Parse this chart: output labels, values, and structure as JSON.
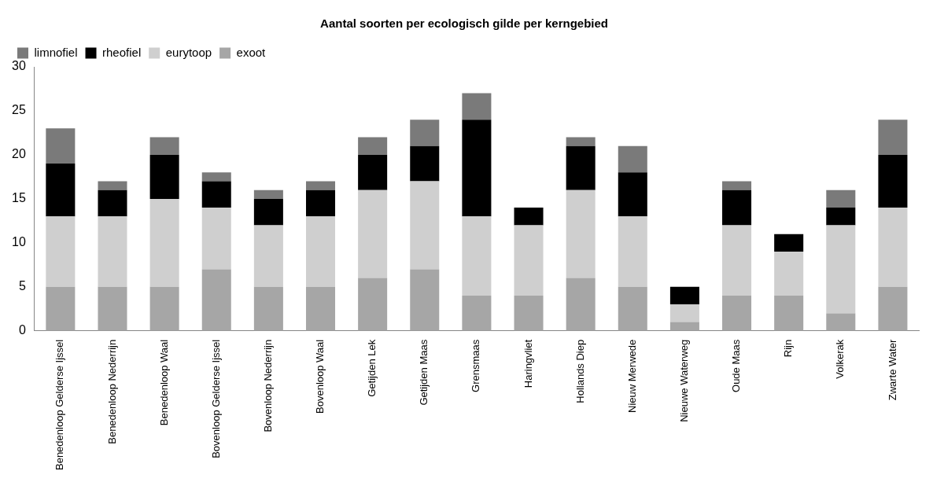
{
  "chart_data": {
    "type": "bar",
    "title": "Aantal soorten per ecologisch gilde per kerngebied",
    "categories": [
      "Benedenloop Gelderse Ijssel",
      "Benedenloop Nederrijn",
      "Benedenloop Waal",
      "Bovenloop Gelderse Ijssel",
      "Bovenloop Nederrijn",
      "Bovenloop Waal",
      "Getijden Lek",
      "Getijden Maas",
      "Grensmaas",
      "Haringvliet",
      "Hollands Diep",
      "Nieuw Merwede",
      "Nieuwe Waterweg",
      "Oude Maas",
      "Rijn",
      "Volkerak",
      "Zwarte Water"
    ],
    "stacked": true,
    "series": [
      {
        "name": "exoot",
        "color": "#a6a6a6",
        "values": [
          5,
          5,
          5,
          7,
          5,
          5,
          6,
          7,
          4,
          4,
          6,
          5,
          1,
          4,
          4,
          2,
          5
        ]
      },
      {
        "name": "eurytoop",
        "color": "#cfcfcf",
        "values": [
          8,
          8,
          10,
          7,
          7,
          8,
          10,
          10,
          9,
          8,
          10,
          8,
          2,
          8,
          5,
          10,
          9
        ]
      },
      {
        "name": "rheofiel",
        "color": "#000000",
        "values": [
          6,
          3,
          5,
          3,
          3,
          3,
          4,
          4,
          11,
          2,
          5,
          5,
          2,
          4,
          2,
          2,
          6
        ]
      },
      {
        "name": "limnofiel",
        "color": "#7a7a7a",
        "values": [
          4,
          1,
          2,
          1,
          1,
          1,
          2,
          3,
          3,
          0,
          1,
          3,
          0,
          1,
          0,
          2,
          4
        ]
      }
    ],
    "ylim": [
      0,
      30
    ],
    "yticks": [
      0,
      5,
      10,
      15,
      20,
      25,
      30
    ],
    "grid": false,
    "legend": "top left"
  }
}
